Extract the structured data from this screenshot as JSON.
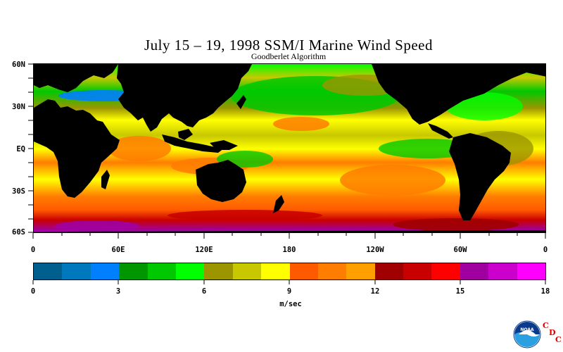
{
  "header": {
    "title": "July 15 – 19, 1998 SSM/I Marine Wind Speed",
    "subtitle": "Goodberlet Algorithm"
  },
  "map": {
    "land_color": "#000000",
    "lat_labels": [
      "60N",
      "30N",
      "EQ",
      "30S",
      "60S"
    ],
    "lon_labels": [
      "0",
      "60E",
      "120E",
      "180",
      "120W",
      "60W",
      "0"
    ]
  },
  "colorbar": {
    "colors": [
      "#005f8c",
      "#0078be",
      "#0080ff",
      "#009600",
      "#00c800",
      "#00ff00",
      "#9b9600",
      "#c8c800",
      "#ffff00",
      "#ff5a00",
      "#ff7d00",
      "#ffa000",
      "#a00000",
      "#c80000",
      "#ff0000",
      "#a000a0",
      "#cc00cc",
      "#ff00ff"
    ],
    "tick_labels": [
      "0",
      "3",
      "6",
      "9",
      "12",
      "15",
      "18"
    ],
    "unit": "m/sec"
  },
  "logo": {
    "noaa_text": "NOAA",
    "cdc_letters": [
      "C",
      "D",
      "C"
    ]
  }
}
